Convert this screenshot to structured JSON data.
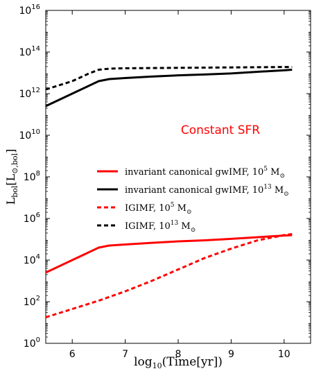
{
  "chart_data": {
    "type": "line",
    "annotation": "Constant SFR",
    "annotation_color": "#ff0000",
    "xlabel": "log10(Time[yr])",
    "ylabel": "Lbol[L⊙,bol]",
    "xlim": [
      5.5,
      10.5
    ],
    "ylim_log10": [
      0,
      16
    ],
    "y_scale": "log",
    "grid": false,
    "legend_position": "center-right",
    "x_ticks": [
      6,
      7,
      8,
      9,
      10
    ],
    "x_tick_labels": [
      "6",
      "7",
      "8",
      "9",
      "10"
    ],
    "y_tick_exponents": [
      0,
      2,
      4,
      6,
      8,
      10,
      12,
      14,
      16
    ],
    "y_tick_base": "10",
    "series": [
      {
        "name": "invariant canonical gwIMF,  10^5 M⊙",
        "legend_main": "invariant canonical gwIMF,  10",
        "legend_exp": "5",
        "legend_unit": " M",
        "color": "#ff0000",
        "dash": "solid",
        "x": [
          5.5,
          6.0,
          6.5,
          6.7,
          7.0,
          7.5,
          8.0,
          8.5,
          9.0,
          9.5,
          10.0,
          10.15
        ],
        "log10_y": [
          3.4,
          4.0,
          4.6,
          4.7,
          4.75,
          4.83,
          4.9,
          4.95,
          5.02,
          5.1,
          5.18,
          5.2
        ]
      },
      {
        "name": "invariant canonical gwIMF,  10^13 M⊙",
        "legend_main": "invariant canonical gwIMF,  10",
        "legend_exp": "13",
        "legend_unit": " M",
        "color": "#000000",
        "dash": "solid",
        "x": [
          5.5,
          6.0,
          6.5,
          6.7,
          7.0,
          7.5,
          8.0,
          8.5,
          9.0,
          9.5,
          10.0,
          10.15
        ],
        "log10_y": [
          11.4,
          12.0,
          12.6,
          12.7,
          12.75,
          12.82,
          12.88,
          12.92,
          12.97,
          13.05,
          13.12,
          13.15
        ]
      },
      {
        "name": "IGIMF,  10^5 M⊙",
        "legend_main": "IGIMF,  10",
        "legend_exp": "5",
        "legend_unit": " M",
        "color": "#ff0000",
        "dash": "dashed",
        "x": [
          5.5,
          6.0,
          6.5,
          7.0,
          7.5,
          8.0,
          8.5,
          9.0,
          9.5,
          10.0,
          10.15
        ],
        "log10_y": [
          1.25,
          1.65,
          2.05,
          2.5,
          3.0,
          3.55,
          4.1,
          4.55,
          4.95,
          5.2,
          5.25
        ]
      },
      {
        "name": "IGIMF,  10^13 M⊙",
        "legend_main": "IGIMF,  10",
        "legend_exp": "13",
        "legend_unit": " M",
        "color": "#000000",
        "dash": "dashed",
        "x": [
          5.5,
          6.0,
          6.3,
          6.5,
          6.7,
          7.0,
          8.0,
          9.0,
          10.0,
          10.15
        ],
        "log10_y": [
          12.2,
          12.6,
          12.95,
          13.15,
          13.2,
          13.22,
          13.24,
          13.26,
          13.28,
          13.28
        ]
      }
    ]
  }
}
